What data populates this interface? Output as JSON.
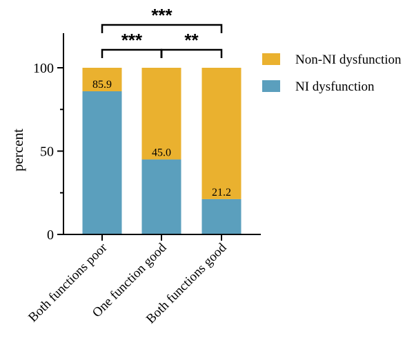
{
  "chart_data": {
    "type": "bar",
    "stacked": true,
    "categories": [
      "Both functions poor",
      "One function good",
      "Both functions good"
    ],
    "series": [
      {
        "name": "NI dysfunction",
        "values": [
          85.9,
          45.0,
          21.2
        ],
        "color": "#5b9fbd"
      },
      {
        "name": "Non-NI dysfunction",
        "values": [
          14.1,
          55.0,
          78.8
        ],
        "color": "#eab12f"
      }
    ],
    "data_labels": [
      "85.9",
      "45.0",
      "21.2"
    ],
    "ylabel": "percent",
    "xlabel": "",
    "ylim": [
      0,
      120
    ],
    "yticks": [
      0,
      50,
      100
    ],
    "legend": {
      "position": "right",
      "entries": [
        "Non-NI dysfunction",
        "NI dysfunction"
      ]
    },
    "significance": [
      {
        "from": 0,
        "to": 1,
        "label": "***"
      },
      {
        "from": 1,
        "to": 2,
        "label": "**"
      },
      {
        "from": 0,
        "to": 2,
        "label": "***"
      }
    ]
  }
}
